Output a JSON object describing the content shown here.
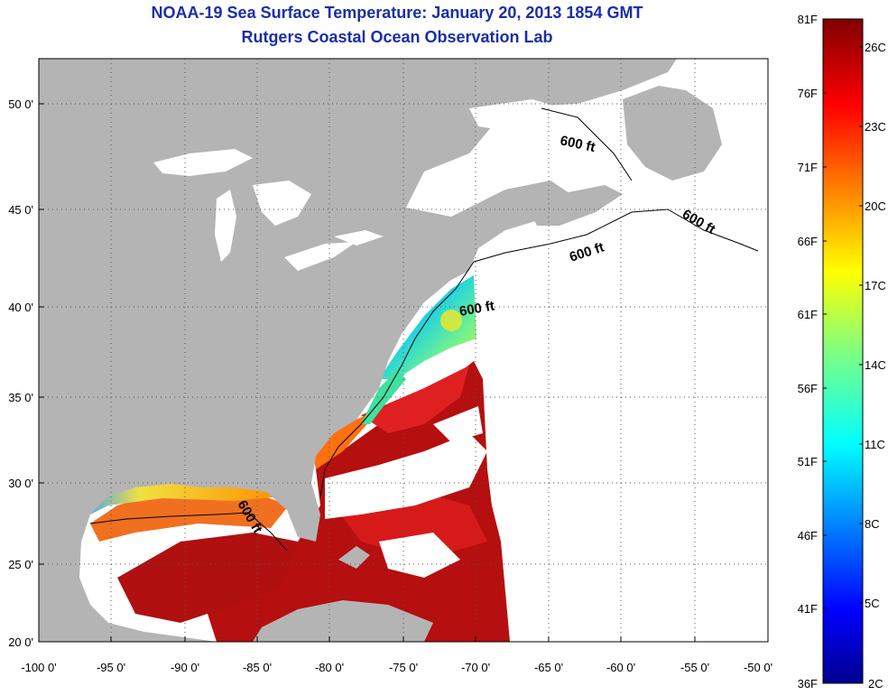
{
  "title": "NOAA-19 Sea Surface Temperature:  January 20, 2013 1854 GMT",
  "subtitle": "Rutgers Coastal Ocean Observation Lab",
  "lon_ticks": [
    "-100 0'",
    "-95 0'",
    "-90 0'",
    "-85 0'",
    "-80 0'",
    "-75 0'",
    "-70 0'",
    "-65 0'",
    "-60 0'",
    "-55 0'",
    "-50 0'"
  ],
  "lat_ticks": [
    "50 0'",
    "45 0'",
    "40 0'",
    "35 0'",
    "30 0'",
    "25 0'",
    "20 0'"
  ],
  "contour_label": "600 ft",
  "colorbar": {
    "fahrenheit": [
      "81F",
      "76F",
      "71F",
      "66F",
      "61F",
      "56F",
      "51F",
      "46F",
      "41F",
      "36F"
    ],
    "celsius": [
      "26C",
      "23C",
      "20C",
      "17C",
      "14C",
      "11C",
      "8C",
      "5C",
      "2C"
    ]
  },
  "colors": {
    "title": "#1a2fa8",
    "land": "#b4b4b4",
    "ocean_no_data": "#ffffff",
    "gridline": "#555555"
  }
}
